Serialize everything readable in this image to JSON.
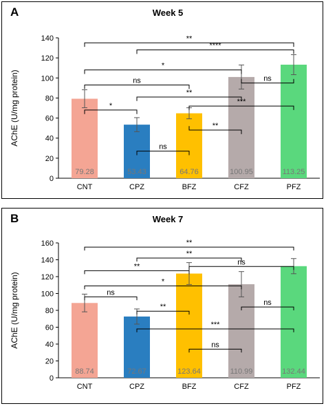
{
  "chart_data": [
    {
      "type": "bar",
      "panel_label": "A",
      "title": "Week 5",
      "ylabel": "AChE (U/mg protein)",
      "xlabel": "",
      "ylim": [
        0,
        140
      ],
      "yticks": [
        0,
        20,
        40,
        60,
        80,
        100,
        120,
        140
      ],
      "grid": false,
      "categories": [
        "CNT",
        "CPZ",
        "BFZ",
        "CFZ",
        "PFZ"
      ],
      "values": [
        79.28,
        53.43,
        64.76,
        100.95,
        113.25
      ],
      "value_labels": [
        "79.28",
        "53.43",
        "64.76",
        "100.95",
        "113.25"
      ],
      "errors": [
        9,
        7,
        5.5,
        12,
        10
      ],
      "colors": [
        "#f4a594",
        "#2a7ec0",
        "#ffc000",
        "#b5aaaa",
        "#5ad87d"
      ],
      "comparisons": [
        {
          "from": 0,
          "to": 4,
          "y": 135,
          "label": "**",
          "left_leg": 4,
          "right_leg": 4
        },
        {
          "from": 1,
          "to": 4,
          "y": 128,
          "label": "****",
          "left_leg": 4,
          "right_leg": 4
        },
        {
          "from": 0,
          "to": 3,
          "y": 108,
          "label": "*",
          "left_leg": 4,
          "right_leg": 4
        },
        {
          "from": 0,
          "to": 2,
          "y": 93,
          "label": "ns",
          "left_leg": 4,
          "right_leg": 4
        },
        {
          "from": 1,
          "to": 3,
          "y": 81,
          "label": "**",
          "left_leg": 4,
          "right_leg": 4
        },
        {
          "from": 0,
          "to": 1,
          "y": 68,
          "label": "*",
          "left_leg": 4,
          "right_leg": 4
        },
        {
          "from": 1,
          "to": 2,
          "y": 27,
          "label": "ns",
          "left_leg": 4,
          "right_leg": 4
        },
        {
          "from": 2,
          "to": 3,
          "y": 48,
          "label": "**",
          "left_leg": -4,
          "right_leg": 4
        },
        {
          "from": 3,
          "to": 4,
          "y": 95,
          "label": "ns",
          "left_leg": -4,
          "right_leg": -4
        },
        {
          "from": 2,
          "to": 4,
          "y": 72,
          "label": "***",
          "left_leg": 4,
          "right_leg": 4
        }
      ]
    },
    {
      "type": "bar",
      "panel_label": "B",
      "title": "Week 7",
      "ylabel": "AChE (U/mg protein)",
      "xlabel": "",
      "ylim": [
        0,
        160
      ],
      "yticks": [
        0,
        20,
        40,
        60,
        80,
        100,
        120,
        140,
        160
      ],
      "grid": false,
      "categories": [
        "CNT",
        "CPZ",
        "BFZ",
        "CFZ",
        "PFZ"
      ],
      "values": [
        88.74,
        72.67,
        123.64,
        110.99,
        132.44
      ],
      "value_labels": [
        "88.74",
        "72.67",
        "123.64",
        "110.99",
        "132.44"
      ],
      "errors": [
        10.5,
        9,
        13,
        15,
        9
      ],
      "colors": [
        "#f4a594",
        "#2a7ec0",
        "#ffc000",
        "#b5aaaa",
        "#5ad87d"
      ],
      "comparisons": [
        {
          "from": 0,
          "to": 4,
          "y": 155,
          "label": "**",
          "left_leg": 4,
          "right_leg": 4
        },
        {
          "from": 1,
          "to": 3,
          "y": 142,
          "label": "**",
          "left_leg": 4,
          "right_leg": 4
        },
        {
          "from": 0,
          "to": 2,
          "y": 127,
          "label": "**",
          "left_leg": 4,
          "right_leg": 4
        },
        {
          "from": 2,
          "to": 4,
          "y": 132,
          "label": "ns",
          "left_leg": 4,
          "right_leg": 4
        },
        {
          "from": 0,
          "to": 3,
          "y": 109,
          "label": "*",
          "left_leg": 4,
          "right_leg": 4
        },
        {
          "from": 0,
          "to": 1,
          "y": 96,
          "label": "ns",
          "left_leg": 4,
          "right_leg": 4
        },
        {
          "from": 1,
          "to": 2,
          "y": 79,
          "label": "**",
          "left_leg": 4,
          "right_leg": 4
        },
        {
          "from": 3,
          "to": 4,
          "y": 84,
          "label": "ns",
          "left_leg": 4,
          "right_leg": 4
        },
        {
          "from": 1,
          "to": 4,
          "y": 58,
          "label": "***",
          "left_leg": 4,
          "right_leg": 4
        },
        {
          "from": 2,
          "to": 3,
          "y": 34,
          "label": "ns",
          "left_leg": 4,
          "right_leg": 4
        }
      ]
    }
  ]
}
